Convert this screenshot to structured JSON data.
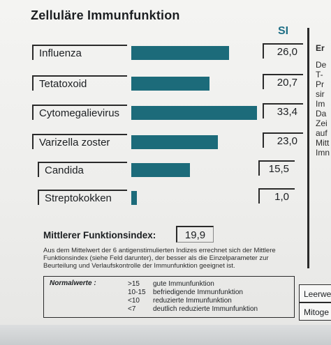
{
  "title": "Zelluläre Immunfunktion",
  "si_header": "SI",
  "colors": {
    "bar": "#1c6b7a",
    "si_header": "#1f6f86"
  },
  "rows": [
    {
      "label": "Influenza",
      "value": "26,0",
      "si": 26.0
    },
    {
      "label": "Tetatoxoid",
      "value": "20,7",
      "si": 20.7
    },
    {
      "label": "Cytomegalievirus",
      "value": "33,4",
      "si": 33.4
    },
    {
      "label": "Varizella zoster",
      "value": "23,0",
      "si": 23.0
    },
    {
      "label": "Candida",
      "value": "15,5",
      "si": 15.5
    },
    {
      "label": "Streptokokken",
      "value": "1,0",
      "si": 1.0
    }
  ],
  "mfi": {
    "label": "Mittlerer Funktionsindex:",
    "value": "19,9"
  },
  "description": "Aus dem Mittelwert der 6 antigenstimulierten Indizes errechnet sich der Mittlere Funktionsindex (siehe Feld darunter), der besser als die Einzelparameter zur Beurteilung und Verlaufskontrolle der Immunfunktion geeignet ist.",
  "normal": {
    "title": "Normalwerte :",
    "rows": [
      {
        "threshold": ">15",
        "text": "gute Immunfunktion"
      },
      {
        "threshold": "10-15",
        "text": "befriedigende Immunfunktion"
      },
      {
        "threshold": "<10",
        "text": "reduzierte Immunfunktion"
      },
      {
        "threshold": "<7",
        "text": "deutlich reduzierte Immunfunktion"
      }
    ]
  },
  "right_column": {
    "header": "Er",
    "lines": [
      "De",
      "T-",
      "Pr",
      "sir",
      "Im",
      "Da",
      "Zei",
      "auf",
      "Mitt",
      "Imn"
    ]
  },
  "side_boxes": [
    "Leerwe",
    "Mitoge"
  ]
}
